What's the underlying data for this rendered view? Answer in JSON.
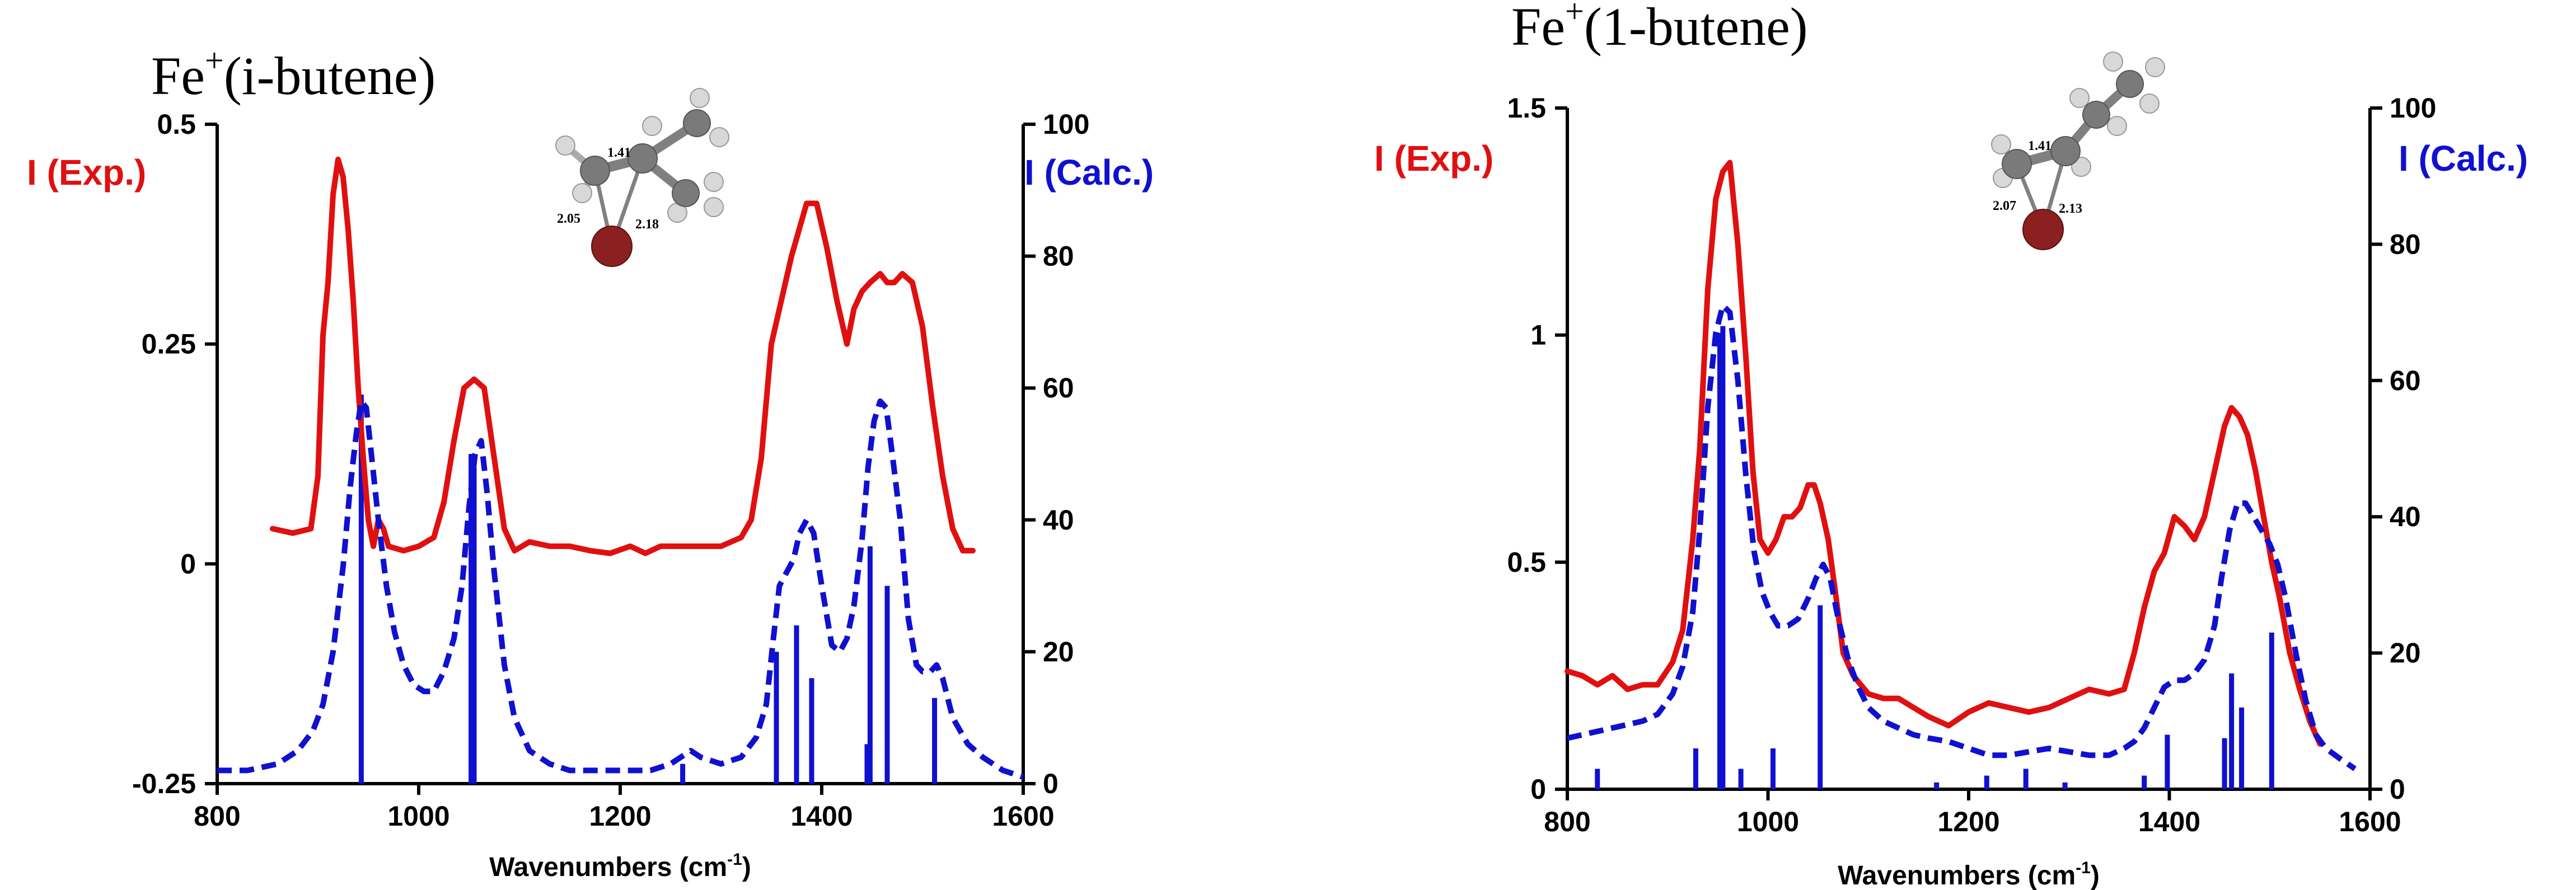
{
  "chart_data": [
    {
      "type": "line",
      "title": "Fe+(i-butene)",
      "title_main": "Fe",
      "title_sup": "+",
      "title_rest": "(i-butene)",
      "xlabel": "Wavenumbers (cm-1)",
      "xlabel_main": "Wavenumbers (cm",
      "xlabel_sup": "-1",
      "xlabel_end": ")",
      "xlim": [
        800,
        1600
      ],
      "xticks": [
        800,
        1000,
        1200,
        1400,
        1600
      ],
      "left_axis": {
        "label": "I (Exp.)",
        "color": "#e01010",
        "ylim": [
          -0.25,
          0.5
        ],
        "ticks": [
          -0.25,
          0,
          0.25,
          0.5
        ],
        "tick_labels": [
          "-0.25",
          "0",
          "0.25",
          "0.5"
        ]
      },
      "right_axis": {
        "label": "I (Calc.)",
        "color": "#1010d0",
        "ylim": [
          0,
          100
        ],
        "ticks": [
          0,
          20,
          40,
          60,
          80,
          100
        ],
        "tick_labels": [
          "0",
          "20",
          "40",
          "60",
          "80",
          "100"
        ]
      },
      "series": [
        {
          "name": "I (Exp.)",
          "axis": "left",
          "style": "solid",
          "color": "#e01010",
          "x": [
            855,
            875,
            893,
            900,
            905,
            910,
            915,
            920,
            925,
            930,
            935,
            940,
            945,
            950,
            955,
            960,
            965,
            970,
            985,
            1000,
            1015,
            1025,
            1035,
            1045,
            1055,
            1065,
            1075,
            1085,
            1095,
            1110,
            1130,
            1150,
            1170,
            1190,
            1210,
            1225,
            1240,
            1260,
            1280,
            1300,
            1320,
            1330,
            1340,
            1350,
            1360,
            1370,
            1385,
            1395,
            1405,
            1415,
            1425,
            1432,
            1440,
            1448,
            1458,
            1465,
            1472,
            1480,
            1490,
            1500,
            1510,
            1520,
            1530,
            1540,
            1550
          ],
          "y": [
            0.04,
            0.035,
            0.04,
            0.1,
            0.26,
            0.32,
            0.42,
            0.46,
            0.44,
            0.38,
            0.3,
            0.2,
            0.12,
            0.05,
            0.02,
            0.05,
            0.04,
            0.02,
            0.015,
            0.02,
            0.03,
            0.07,
            0.14,
            0.2,
            0.21,
            0.2,
            0.12,
            0.04,
            0.015,
            0.025,
            0.02,
            0.02,
            0.015,
            0.012,
            0.02,
            0.012,
            0.02,
            0.02,
            0.02,
            0.02,
            0.03,
            0.05,
            0.12,
            0.25,
            0.3,
            0.35,
            0.41,
            0.41,
            0.36,
            0.3,
            0.25,
            0.29,
            0.31,
            0.32,
            0.33,
            0.32,
            0.32,
            0.33,
            0.32,
            0.27,
            0.18,
            0.1,
            0.04,
            0.015,
            0.015
          ]
        },
        {
          "name": "I (Calc.)",
          "axis": "right",
          "style": "dashed",
          "color": "#1010d0",
          "x": [
            800,
            830,
            860,
            880,
            895,
            905,
            915,
            925,
            932,
            938,
            943,
            948,
            953,
            960,
            968,
            976,
            985,
            995,
            1005,
            1015,
            1025,
            1035,
            1043,
            1050,
            1056,
            1062,
            1068,
            1075,
            1085,
            1095,
            1110,
            1130,
            1150,
            1170,
            1190,
            1210,
            1230,
            1250,
            1260,
            1270,
            1280,
            1300,
            1320,
            1335,
            1345,
            1352,
            1358,
            1365,
            1372,
            1378,
            1385,
            1392,
            1400,
            1410,
            1418,
            1425,
            1432,
            1440,
            1446,
            1452,
            1458,
            1464,
            1470,
            1478,
            1486,
            1494,
            1500,
            1508,
            1514,
            1520,
            1530,
            1545,
            1560,
            1580,
            1600
          ],
          "y": [
            2,
            2,
            3,
            5,
            8,
            12,
            20,
            33,
            45,
            53,
            58,
            57,
            50,
            40,
            30,
            23,
            18,
            15,
            14,
            14,
            17,
            22,
            30,
            42,
            50,
            52,
            44,
            32,
            18,
            10,
            5,
            3,
            2,
            2,
            2,
            2,
            2,
            3,
            4,
            5,
            4,
            3,
            4,
            7,
            12,
            22,
            30,
            32,
            34,
            38,
            40,
            38,
            30,
            21,
            20,
            22,
            27,
            37,
            48,
            55,
            58,
            57,
            50,
            40,
            25,
            18,
            17,
            17,
            18,
            16,
            10,
            6,
            4,
            2,
            1
          ]
        }
      ],
      "sticks": {
        "name": "I (Calc.)",
        "axis": "right",
        "x": [
          943,
          1052,
          1055,
          1262,
          1355,
          1375,
          1390,
          1445,
          1448,
          1465,
          1512
        ],
        "y": [
          59,
          50,
          48,
          3,
          20,
          24,
          16,
          6,
          36,
          30,
          13
        ]
      },
      "inset": {
        "type": "molecule",
        "bond_labels": [
          "1.41",
          "2.05",
          "2.18"
        ]
      }
    },
    {
      "type": "line",
      "title": "Fe+(1-butene)",
      "title_main": "Fe",
      "title_sup": "+",
      "title_rest": "(1-butene)",
      "xlabel": "Wavenumbers (cm-1)",
      "xlabel_main": "Wavenumbers (cm",
      "xlabel_sup": "-1",
      "xlabel_end": ")",
      "xlim": [
        800,
        1600
      ],
      "xticks": [
        800,
        1000,
        1200,
        1400,
        1600
      ],
      "left_axis": {
        "label": "I (Exp.)",
        "color": "#e01010",
        "ylim": [
          0,
          1.5
        ],
        "ticks": [
          0,
          0.5,
          1,
          1.5
        ],
        "tick_labels": [
          "0",
          "0.5",
          "1",
          "1.5"
        ]
      },
      "right_axis": {
        "label": "I (Calc.)",
        "color": "#1010d0",
        "ylim": [
          0,
          100
        ],
        "ticks": [
          0,
          20,
          40,
          60,
          80,
          100
        ],
        "tick_labels": [
          "0",
          "20",
          "40",
          "60",
          "80",
          "100"
        ]
      },
      "series": [
        {
          "name": "I (Exp.)",
          "axis": "left",
          "style": "solid",
          "color": "#e01010",
          "x": [
            800,
            815,
            830,
            845,
            860,
            875,
            890,
            905,
            915,
            925,
            932,
            940,
            948,
            955,
            962,
            970,
            978,
            985,
            992,
            1000,
            1008,
            1016,
            1024,
            1032,
            1040,
            1046,
            1052,
            1060,
            1068,
            1075,
            1085,
            1100,
            1115,
            1130,
            1145,
            1160,
            1180,
            1200,
            1220,
            1240,
            1260,
            1280,
            1300,
            1320,
            1340,
            1355,
            1365,
            1375,
            1385,
            1395,
            1405,
            1415,
            1425,
            1435,
            1445,
            1455,
            1462,
            1470,
            1478,
            1486,
            1494,
            1502,
            1510,
            1520,
            1530,
            1540,
            1550
          ],
          "y": [
            0.26,
            0.25,
            0.23,
            0.25,
            0.22,
            0.23,
            0.23,
            0.28,
            0.35,
            0.55,
            0.75,
            1.1,
            1.3,
            1.36,
            1.38,
            1.2,
            0.95,
            0.7,
            0.55,
            0.52,
            0.55,
            0.6,
            0.6,
            0.62,
            0.67,
            0.67,
            0.63,
            0.55,
            0.42,
            0.3,
            0.25,
            0.21,
            0.2,
            0.2,
            0.18,
            0.16,
            0.14,
            0.17,
            0.19,
            0.18,
            0.17,
            0.18,
            0.2,
            0.22,
            0.21,
            0.22,
            0.3,
            0.4,
            0.48,
            0.52,
            0.6,
            0.58,
            0.55,
            0.6,
            0.7,
            0.8,
            0.84,
            0.82,
            0.78,
            0.7,
            0.6,
            0.5,
            0.42,
            0.3,
            0.22,
            0.15,
            0.1
          ]
        },
        {
          "name": "I (Calc.)",
          "axis": "right",
          "style": "dashed",
          "color": "#1010d0",
          "x": [
            800,
            815,
            830,
            845,
            860,
            875,
            890,
            905,
            915,
            925,
            932,
            940,
            948,
            955,
            962,
            970,
            978,
            986,
            994,
            1002,
            1010,
            1020,
            1030,
            1040,
            1048,
            1055,
            1062,
            1070,
            1080,
            1090,
            1100,
            1115,
            1130,
            1145,
            1160,
            1180,
            1200,
            1220,
            1240,
            1260,
            1280,
            1300,
            1320,
            1340,
            1355,
            1365,
            1375,
            1385,
            1395,
            1405,
            1415,
            1425,
            1435,
            1445,
            1452,
            1460,
            1468,
            1476,
            1484,
            1492,
            1500,
            1508,
            1516,
            1526,
            1536,
            1546,
            1556,
            1570,
            1585
          ],
          "y": [
            7.5,
            8,
            8.5,
            9,
            9.5,
            10,
            11,
            14,
            18,
            26,
            38,
            56,
            67,
            71,
            70,
            60,
            46,
            35,
            29,
            26,
            24,
            24,
            25,
            28,
            31,
            33,
            31,
            25,
            19,
            15,
            12,
            10,
            9,
            8,
            7.5,
            7,
            6,
            5,
            5,
            5.5,
            6,
            5.5,
            5,
            5,
            6,
            7,
            9,
            12,
            15,
            16,
            16,
            17,
            19,
            24,
            31,
            38,
            42,
            42,
            40,
            38,
            36,
            33,
            28,
            20,
            13,
            8,
            6,
            4.5,
            3
          ]
        }
      ],
      "sticks": {
        "name": "I (Calc.)",
        "axis": "right",
        "x": [
          830,
          928,
          952,
          955,
          973,
          1005,
          1052,
          1168,
          1218,
          1257,
          1296,
          1375,
          1398,
          1455,
          1462,
          1472,
          1502
        ],
        "y": [
          3,
          6,
          67,
          68,
          3,
          6,
          27,
          1,
          2,
          3,
          1,
          2,
          8,
          7.5,
          17,
          12,
          23
        ]
      },
      "inset": {
        "type": "molecule",
        "bond_labels": [
          "1.41",
          "2.07",
          "2.13"
        ]
      }
    }
  ]
}
